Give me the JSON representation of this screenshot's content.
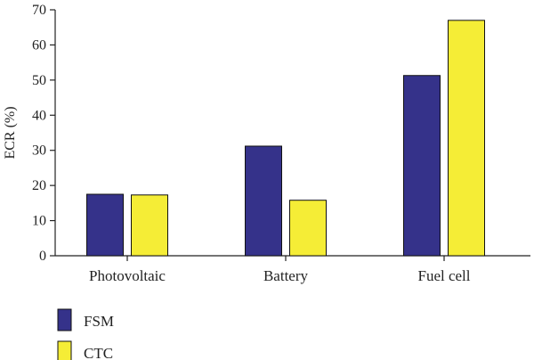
{
  "chart_data": {
    "type": "bar",
    "categories": [
      "Photovoltaic",
      "Battery",
      "Fuel cell"
    ],
    "series": [
      {
        "name": "FSM",
        "values": [
          17.5,
          31.2,
          51.3
        ],
        "color": "#35328a"
      },
      {
        "name": "CTC",
        "values": [
          17.3,
          15.8,
          67.0
        ],
        "color": "#f5ed36"
      }
    ],
    "xlabel": "",
    "ylabel": "ECR (%)",
    "ylim": [
      0,
      70
    ],
    "yticks": [
      0,
      10,
      20,
      30,
      40,
      50,
      60,
      70
    ],
    "legend_position": "bottom-left",
    "grid": false
  }
}
